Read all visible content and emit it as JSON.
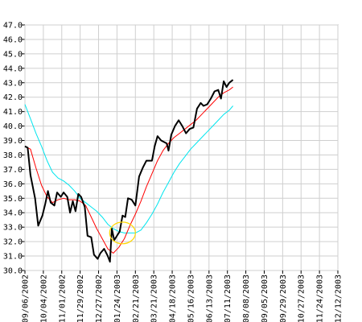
{
  "chart_data": {
    "type": "line",
    "title": "",
    "xlabel": "",
    "ylabel": "",
    "ylim": [
      30.0,
      47.0
    ],
    "y_ticks": [
      "30.0",
      "31.0",
      "32.0",
      "33.0",
      "34.0",
      "35.0",
      "36.0",
      "37.0",
      "38.0",
      "39.0",
      "40.0",
      "41.0",
      "42.0",
      "43.0",
      "44.0",
      "45.0",
      "46.0",
      "47.0"
    ],
    "x_ticks": [
      "09/06/2002",
      "10/04/2002",
      "11/01/2002",
      "11/29/2002",
      "12/27/2002",
      "01/24/2003",
      "02/21/2003",
      "03/21/2003",
      "04/18/2003",
      "05/16/2003",
      "06/13/2003",
      "07/11/2003",
      "08/08/2003",
      "09/05/2003",
      "09/29/2003",
      "10/27/2003",
      "11/24/2003",
      "12/12/2003"
    ],
    "grid": true,
    "legend": "none",
    "series": [
      {
        "color": "#000000",
        "points": [
          [
            0,
            38.6
          ],
          [
            0.15,
            38.5
          ],
          [
            0.3,
            36.6
          ],
          [
            0.55,
            35.0
          ],
          [
            0.72,
            33.1
          ],
          [
            0.95,
            33.8
          ],
          [
            1.1,
            34.6
          ],
          [
            1.25,
            35.5
          ],
          [
            1.4,
            34.7
          ],
          [
            1.6,
            34.5
          ],
          [
            1.75,
            35.4
          ],
          [
            1.95,
            35.1
          ],
          [
            2.1,
            35.4
          ],
          [
            2.3,
            35.1
          ],
          [
            2.45,
            34.0
          ],
          [
            2.6,
            34.8
          ],
          [
            2.75,
            34.1
          ],
          [
            2.9,
            35.3
          ],
          [
            3.05,
            35.1
          ],
          [
            3.25,
            34.4
          ],
          [
            3.4,
            32.4
          ],
          [
            3.6,
            32.3
          ],
          [
            3.75,
            31.1
          ],
          [
            3.95,
            30.8
          ],
          [
            4.1,
            31.2
          ],
          [
            4.3,
            31.5
          ],
          [
            4.5,
            31.0
          ],
          [
            4.62,
            30.6
          ],
          [
            4.72,
            32.9
          ],
          [
            4.85,
            32.1
          ],
          [
            5.0,
            32.4
          ],
          [
            5.15,
            32.7
          ],
          [
            5.3,
            33.8
          ],
          [
            5.45,
            33.7
          ],
          [
            5.6,
            35.0
          ],
          [
            5.8,
            34.9
          ],
          [
            6.0,
            34.5
          ],
          [
            6.2,
            36.5
          ],
          [
            6.4,
            37.1
          ],
          [
            6.6,
            37.6
          ],
          [
            6.9,
            37.6
          ],
          [
            7.05,
            38.6
          ],
          [
            7.2,
            39.3
          ],
          [
            7.4,
            39.0
          ],
          [
            7.7,
            38.8
          ],
          [
            7.8,
            38.3
          ],
          [
            7.95,
            39.4
          ],
          [
            8.15,
            40.0
          ],
          [
            8.35,
            40.4
          ],
          [
            8.55,
            40.0
          ],
          [
            8.75,
            39.5
          ],
          [
            8.95,
            39.8
          ],
          [
            9.15,
            39.9
          ],
          [
            9.35,
            41.2
          ],
          [
            9.55,
            41.6
          ],
          [
            9.7,
            41.4
          ],
          [
            9.9,
            41.5
          ],
          [
            10.1,
            41.9
          ],
          [
            10.3,
            42.4
          ],
          [
            10.5,
            42.5
          ],
          [
            10.65,
            41.9
          ],
          [
            10.8,
            43.1
          ],
          [
            10.95,
            42.7
          ],
          [
            11.1,
            43.0
          ],
          [
            11.3,
            43.2
          ]
        ]
      },
      {
        "color": "#ff0000",
        "points": [
          [
            0,
            38.6
          ],
          [
            0.3,
            38.4
          ],
          [
            0.6,
            37.1
          ],
          [
            0.9,
            35.9
          ],
          [
            1.2,
            35.1
          ],
          [
            1.5,
            34.7
          ],
          [
            1.8,
            34.9
          ],
          [
            2.1,
            35.0
          ],
          [
            2.4,
            34.9
          ],
          [
            2.7,
            34.9
          ],
          [
            3.0,
            34.8
          ],
          [
            3.3,
            34.5
          ],
          [
            3.6,
            33.7
          ],
          [
            3.9,
            32.9
          ],
          [
            4.2,
            32.2
          ],
          [
            4.5,
            31.5
          ],
          [
            4.8,
            31.2
          ],
          [
            5.1,
            31.6
          ],
          [
            5.4,
            32.2
          ],
          [
            5.7,
            33.1
          ],
          [
            6.0,
            33.9
          ],
          [
            6.3,
            34.8
          ],
          [
            6.6,
            35.8
          ],
          [
            6.9,
            36.7
          ],
          [
            7.2,
            37.6
          ],
          [
            7.5,
            38.3
          ],
          [
            7.8,
            38.8
          ],
          [
            8.1,
            39.2
          ],
          [
            8.4,
            39.5
          ],
          [
            8.7,
            39.8
          ],
          [
            9.0,
            40.1
          ],
          [
            9.3,
            40.4
          ],
          [
            9.6,
            40.8
          ],
          [
            9.9,
            41.2
          ],
          [
            10.2,
            41.6
          ],
          [
            10.5,
            42.0
          ],
          [
            10.8,
            42.3
          ],
          [
            11.1,
            42.5
          ],
          [
            11.3,
            42.7
          ]
        ]
      },
      {
        "color": "#00e5ee",
        "points": [
          [
            0,
            41.5
          ],
          [
            0.3,
            40.5
          ],
          [
            0.6,
            39.5
          ],
          [
            0.9,
            38.6
          ],
          [
            1.2,
            37.6
          ],
          [
            1.5,
            36.8
          ],
          [
            1.8,
            36.4
          ],
          [
            2.1,
            36.2
          ],
          [
            2.4,
            35.9
          ],
          [
            2.7,
            35.5
          ],
          [
            3.0,
            35.0
          ],
          [
            3.3,
            34.7
          ],
          [
            3.6,
            34.4
          ],
          [
            3.9,
            34.1
          ],
          [
            4.2,
            33.7
          ],
          [
            4.5,
            33.2
          ],
          [
            4.8,
            32.9
          ],
          [
            5.1,
            32.7
          ],
          [
            5.4,
            32.6
          ],
          [
            5.7,
            32.6
          ],
          [
            6.0,
            32.6
          ],
          [
            6.3,
            32.8
          ],
          [
            6.6,
            33.3
          ],
          [
            6.9,
            33.9
          ],
          [
            7.2,
            34.6
          ],
          [
            7.5,
            35.4
          ],
          [
            7.8,
            36.1
          ],
          [
            8.1,
            36.8
          ],
          [
            8.4,
            37.4
          ],
          [
            8.7,
            37.9
          ],
          [
            9.0,
            38.4
          ],
          [
            9.3,
            38.8
          ],
          [
            9.6,
            39.2
          ],
          [
            9.9,
            39.6
          ],
          [
            10.2,
            40.0
          ],
          [
            10.5,
            40.4
          ],
          [
            10.8,
            40.8
          ],
          [
            11.1,
            41.1
          ],
          [
            11.3,
            41.4
          ]
        ]
      }
    ],
    "annotations": [
      {
        "type": "ellipse",
        "color": "#ffd700",
        "center": [
          5.3,
          32.6
        ],
        "rx": 0.7,
        "ry": 0.75
      }
    ]
  }
}
